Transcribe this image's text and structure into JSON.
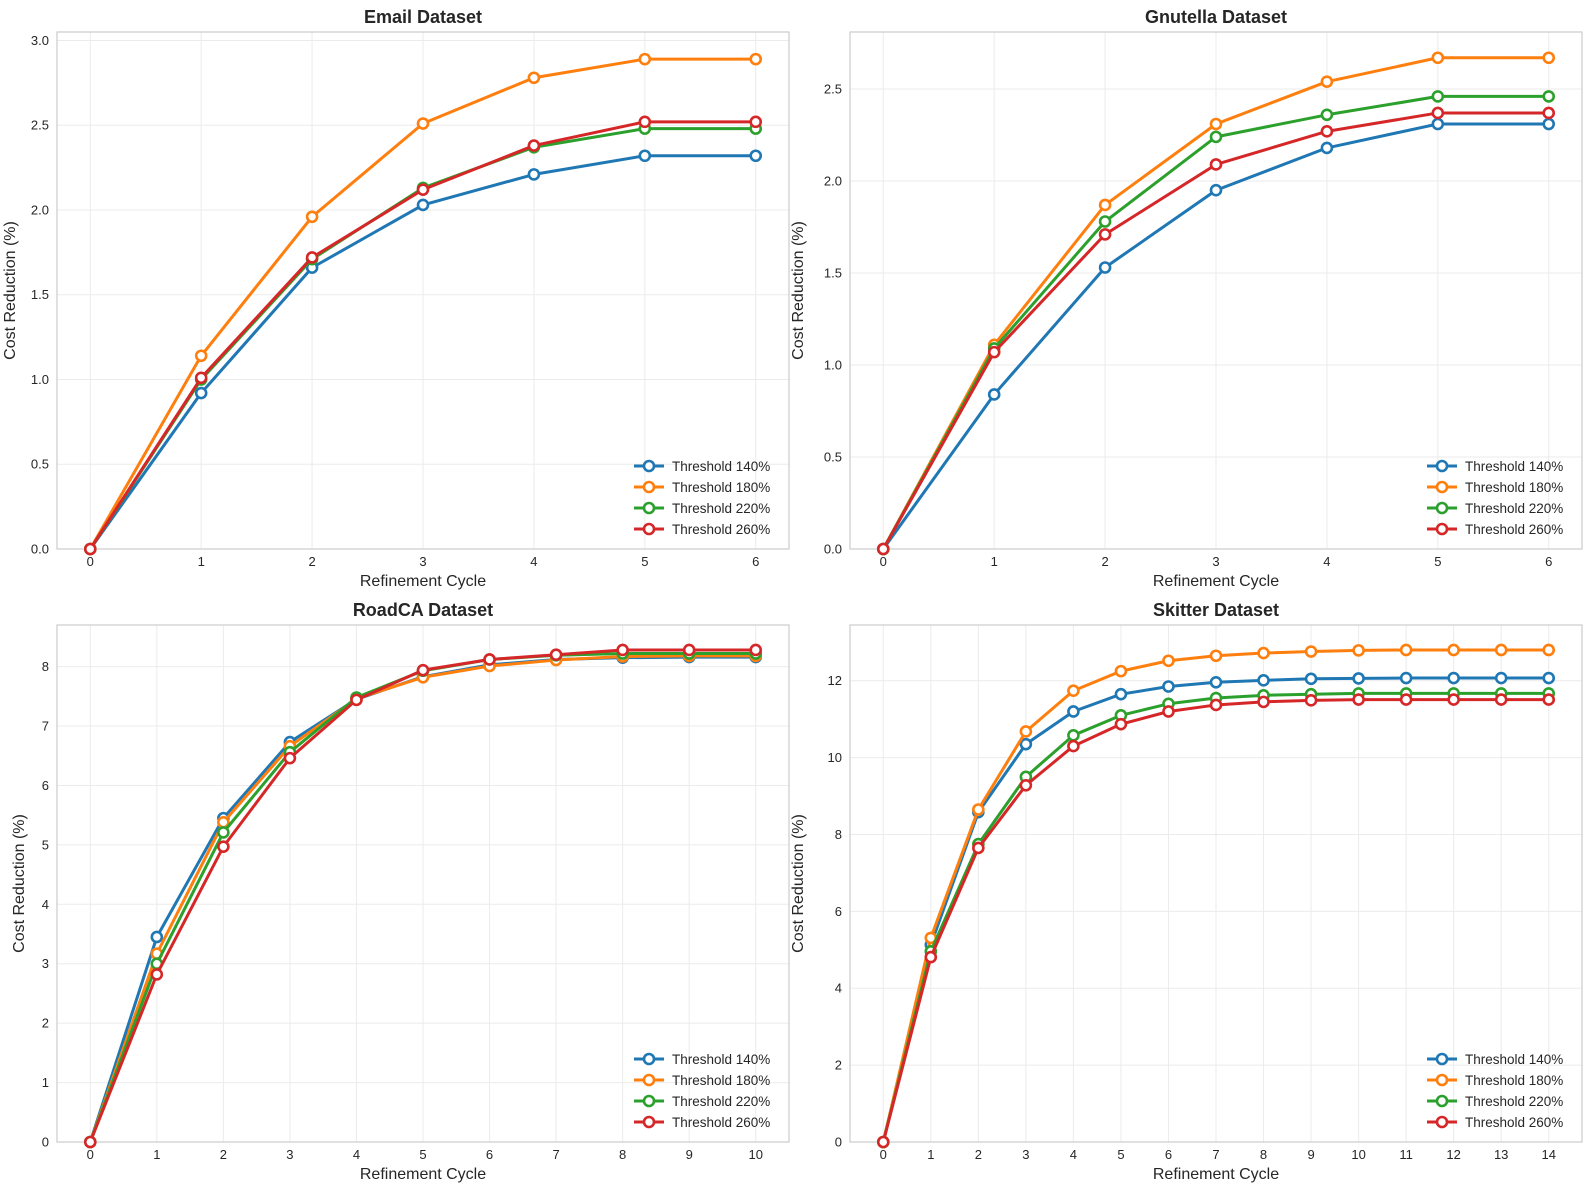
{
  "chart_data": [
    {
      "type": "line",
      "title": "Email Dataset",
      "xlabel": "Refinement Cycle",
      "ylabel": "Cost Reduction (%)",
      "x": [
        0,
        1,
        2,
        3,
        4,
        5,
        6
      ],
      "xlim": [
        -0.3,
        6.3
      ],
      "ylim": [
        0,
        3.05
      ],
      "yticks": [
        0.0,
        0.5,
        1.0,
        1.5,
        2.0,
        2.5,
        3.0
      ],
      "grid": true,
      "legend_position": "bottom-right",
      "series": [
        {
          "name": "Threshold 140%",
          "color": "#1f77b4",
          "values": [
            0,
            0.92,
            1.66,
            2.03,
            2.21,
            2.32,
            2.32
          ]
        },
        {
          "name": "Threshold 180%",
          "color": "#ff7f0e",
          "values": [
            0,
            1.14,
            1.96,
            2.51,
            2.78,
            2.89,
            2.89
          ]
        },
        {
          "name": "Threshold 220%",
          "color": "#2ca02c",
          "values": [
            0,
            1.0,
            1.71,
            2.13,
            2.37,
            2.48,
            2.48
          ]
        },
        {
          "name": "Threshold 260%",
          "color": "#d62728",
          "values": [
            0,
            1.01,
            1.72,
            2.12,
            2.38,
            2.52,
            2.52
          ]
        }
      ]
    },
    {
      "type": "line",
      "title": "Gnutella Dataset",
      "xlabel": "Refinement Cycle",
      "ylabel": "Cost Reduction (%)",
      "x": [
        0,
        1,
        2,
        3,
        4,
        5,
        6
      ],
      "xlim": [
        -0.3,
        6.3
      ],
      "ylim": [
        0,
        2.81
      ],
      "yticks": [
        0.0,
        0.5,
        1.0,
        1.5,
        2.0,
        2.5
      ],
      "grid": true,
      "legend_position": "bottom-right",
      "series": [
        {
          "name": "Threshold 140%",
          "color": "#1f77b4",
          "values": [
            0,
            0.84,
            1.53,
            1.95,
            2.18,
            2.31,
            2.31
          ]
        },
        {
          "name": "Threshold 180%",
          "color": "#ff7f0e",
          "values": [
            0,
            1.11,
            1.87,
            2.31,
            2.54,
            2.67,
            2.67
          ]
        },
        {
          "name": "Threshold 220%",
          "color": "#2ca02c",
          "values": [
            0,
            1.09,
            1.78,
            2.24,
            2.36,
            2.46,
            2.46
          ]
        },
        {
          "name": "Threshold 260%",
          "color": "#d62728",
          "values": [
            0,
            1.07,
            1.71,
            2.09,
            2.27,
            2.37,
            2.37
          ]
        }
      ]
    },
    {
      "type": "line",
      "title": "RoadCA Dataset",
      "xlabel": "Refinement Cycle",
      "ylabel": "Cost Reduction (%)",
      "x": [
        0,
        1,
        2,
        3,
        4,
        5,
        6,
        7,
        8,
        9,
        10
      ],
      "xlim": [
        -0.5,
        10.5
      ],
      "ylim": [
        0,
        8.7
      ],
      "yticks": [
        0,
        1,
        2,
        3,
        4,
        5,
        6,
        7,
        8
      ],
      "grid": true,
      "legend_position": "bottom-right",
      "series": [
        {
          "name": "Threshold 140%",
          "color": "#1f77b4",
          "values": [
            0,
            3.45,
            5.45,
            6.73,
            7.45,
            7.83,
            8.03,
            8.12,
            8.15,
            8.16,
            8.16
          ]
        },
        {
          "name": "Threshold 180%",
          "color": "#ff7f0e",
          "values": [
            0,
            3.17,
            5.38,
            6.66,
            7.46,
            7.82,
            8.01,
            8.11,
            8.17,
            8.18,
            8.18
          ]
        },
        {
          "name": "Threshold 220%",
          "color": "#2ca02c",
          "values": [
            0,
            3.0,
            5.21,
            6.56,
            7.48,
            7.93,
            8.12,
            8.19,
            8.22,
            8.22,
            8.22
          ]
        },
        {
          "name": "Threshold 260%",
          "color": "#d62728",
          "values": [
            0,
            2.82,
            4.97,
            6.46,
            7.44,
            7.94,
            8.12,
            8.2,
            8.28,
            8.28,
            8.28
          ]
        }
      ]
    },
    {
      "type": "line",
      "title": "Skitter Dataset",
      "xlabel": "Refinement Cycle",
      "ylabel": "Cost Reduction (%)",
      "x": [
        0,
        1,
        2,
        3,
        4,
        5,
        6,
        7,
        8,
        9,
        10,
        11,
        12,
        13,
        14
      ],
      "xlim": [
        -0.7,
        14.7
      ],
      "ylim": [
        0,
        13.45
      ],
      "yticks": [
        0,
        2,
        4,
        6,
        8,
        10,
        12
      ],
      "grid": true,
      "legend_position": "bottom-right",
      "series": [
        {
          "name": "Threshold 140%",
          "color": "#1f77b4",
          "values": [
            0,
            5.13,
            8.58,
            10.35,
            11.2,
            11.65,
            11.85,
            11.96,
            12.01,
            12.05,
            12.06,
            12.07,
            12.07,
            12.07,
            12.07
          ]
        },
        {
          "name": "Threshold 180%",
          "color": "#ff7f0e",
          "values": [
            0,
            5.31,
            8.65,
            10.68,
            11.74,
            12.25,
            12.52,
            12.65,
            12.72,
            12.76,
            12.79,
            12.8,
            12.8,
            12.8,
            12.8
          ]
        },
        {
          "name": "Threshold 220%",
          "color": "#2ca02c",
          "values": [
            0,
            4.96,
            7.75,
            9.5,
            10.58,
            11.1,
            11.4,
            11.55,
            11.62,
            11.65,
            11.67,
            11.67,
            11.67,
            11.67,
            11.67
          ]
        },
        {
          "name": "Threshold 260%",
          "color": "#d62728",
          "values": [
            0,
            4.81,
            7.65,
            9.28,
            10.3,
            10.87,
            11.2,
            11.37,
            11.45,
            11.49,
            11.51,
            11.51,
            11.51,
            11.51,
            11.51
          ]
        }
      ]
    }
  ]
}
